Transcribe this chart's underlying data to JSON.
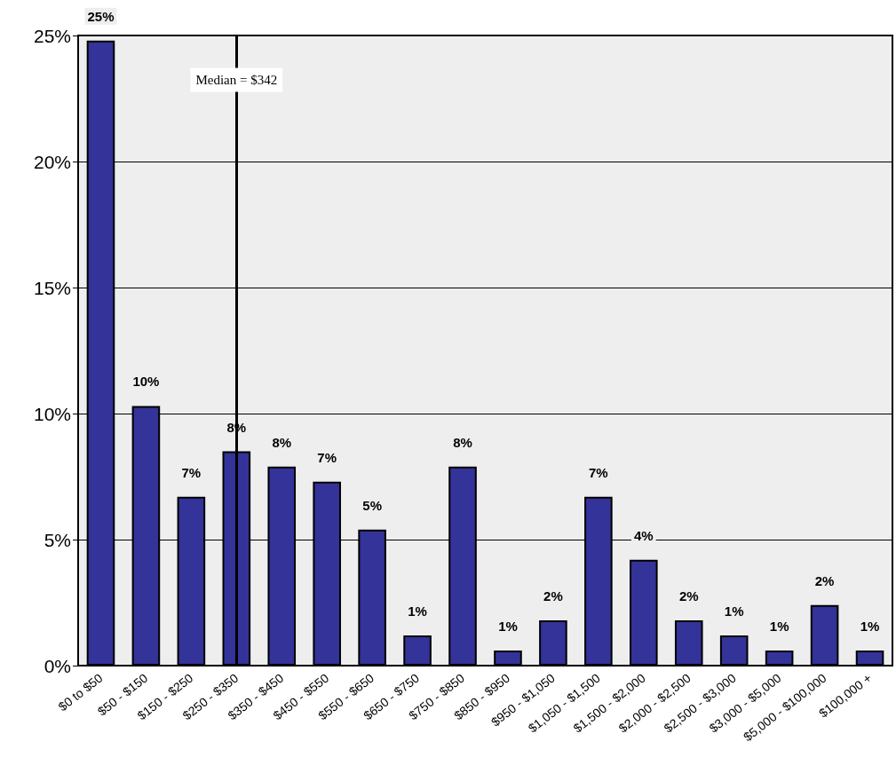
{
  "chart_data": {
    "type": "bar",
    "categories": [
      "$0 to $50",
      "$50 - $150",
      "$150 - $250",
      "$250 - $350",
      "$350 - $450",
      "$450 - $550",
      "$550 - $650",
      "$650 - $750",
      "$750 - $850",
      "$850 - $950",
      "$950 - $1,050",
      "$1,050 - $1,500",
      "$1,500 - $2,000",
      "$2,000 - $2,500",
      "$2,500 - $3,000",
      "$3,000 - $5,000",
      "$5,000 - $100,000",
      "$100,000 +"
    ],
    "values": [
      24.8,
      10.3,
      6.7,
      8.5,
      7.9,
      7.3,
      5.4,
      1.2,
      7.9,
      0.6,
      1.8,
      6.7,
      4.2,
      1.8,
      1.2,
      0.6,
      2.4,
      0.6
    ],
    "value_labels": [
      "25%",
      "10%",
      "7%",
      "8%",
      "8%",
      "7%",
      "5%",
      "1%",
      "8%",
      "1%",
      "2%",
      "7%",
      "4%",
      "2%",
      "1%",
      "1%",
      "2%",
      "1%"
    ],
    "color": "#333399",
    "ylim": [
      0,
      25
    ],
    "yticks": [
      {
        "value": 0,
        "label": "0%"
      },
      {
        "value": 5,
        "label": "5%"
      },
      {
        "value": 10,
        "label": "10%"
      },
      {
        "value": 15,
        "label": "15%"
      },
      {
        "value": 20,
        "label": "20%"
      },
      {
        "value": 25,
        "label": "25%"
      }
    ],
    "grid": "y",
    "ref_lines": [
      {
        "axis": "x",
        "value": "$250 - $350",
        "label": "Median = $342"
      }
    ]
  }
}
